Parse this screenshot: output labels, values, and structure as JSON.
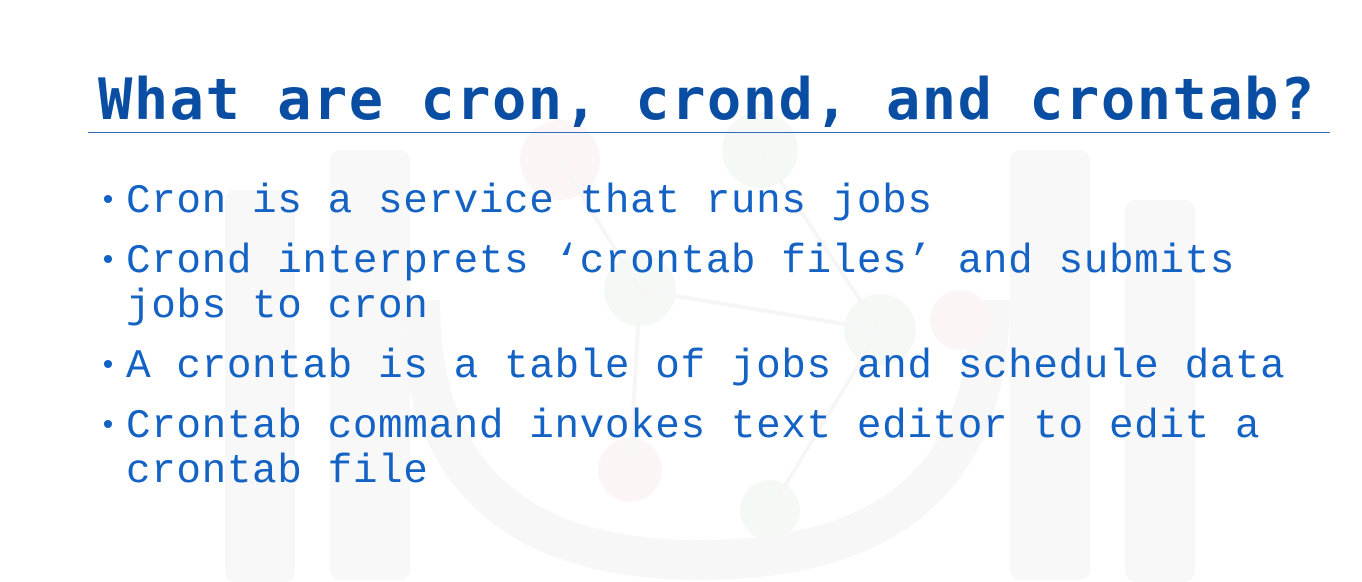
{
  "slide": {
    "title": "What are cron, crond, and crontab?",
    "bullets": [
      {
        "lines": [
          "Cron is a service that runs jobs"
        ]
      },
      {
        "lines": [
          "Crond interprets ‘crontab files’ and submits",
          "jobs to cron"
        ]
      },
      {
        "lines": [
          "A crontab is a table of jobs and schedule data"
        ]
      },
      {
        "lines": [
          "Crontab command invokes text editor to edit a",
          "crontab file"
        ]
      }
    ],
    "bullet_symbol": "•"
  },
  "colors": {
    "title": "#0a4ea3",
    "text": "#1463c4",
    "rule": "#2f6db8",
    "watermark": "#f4f5f6"
  }
}
